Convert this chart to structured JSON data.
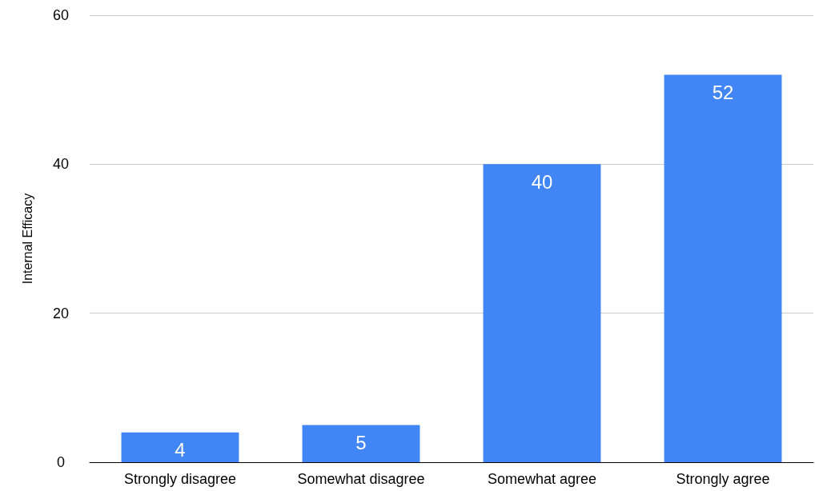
{
  "chart_data": {
    "type": "bar",
    "ylabel": "Internal Efficacy",
    "categories": [
      "Strongly disagree",
      "Somewhat disagree",
      "Somewhat agree",
      "Strongly agree"
    ],
    "values": [
      4,
      5,
      40,
      52
    ],
    "color": "#4285f4",
    "ylim": [
      0,
      60
    ],
    "yticks": [
      0,
      20,
      40,
      60
    ],
    "grid": "y",
    "data_labels": true
  }
}
